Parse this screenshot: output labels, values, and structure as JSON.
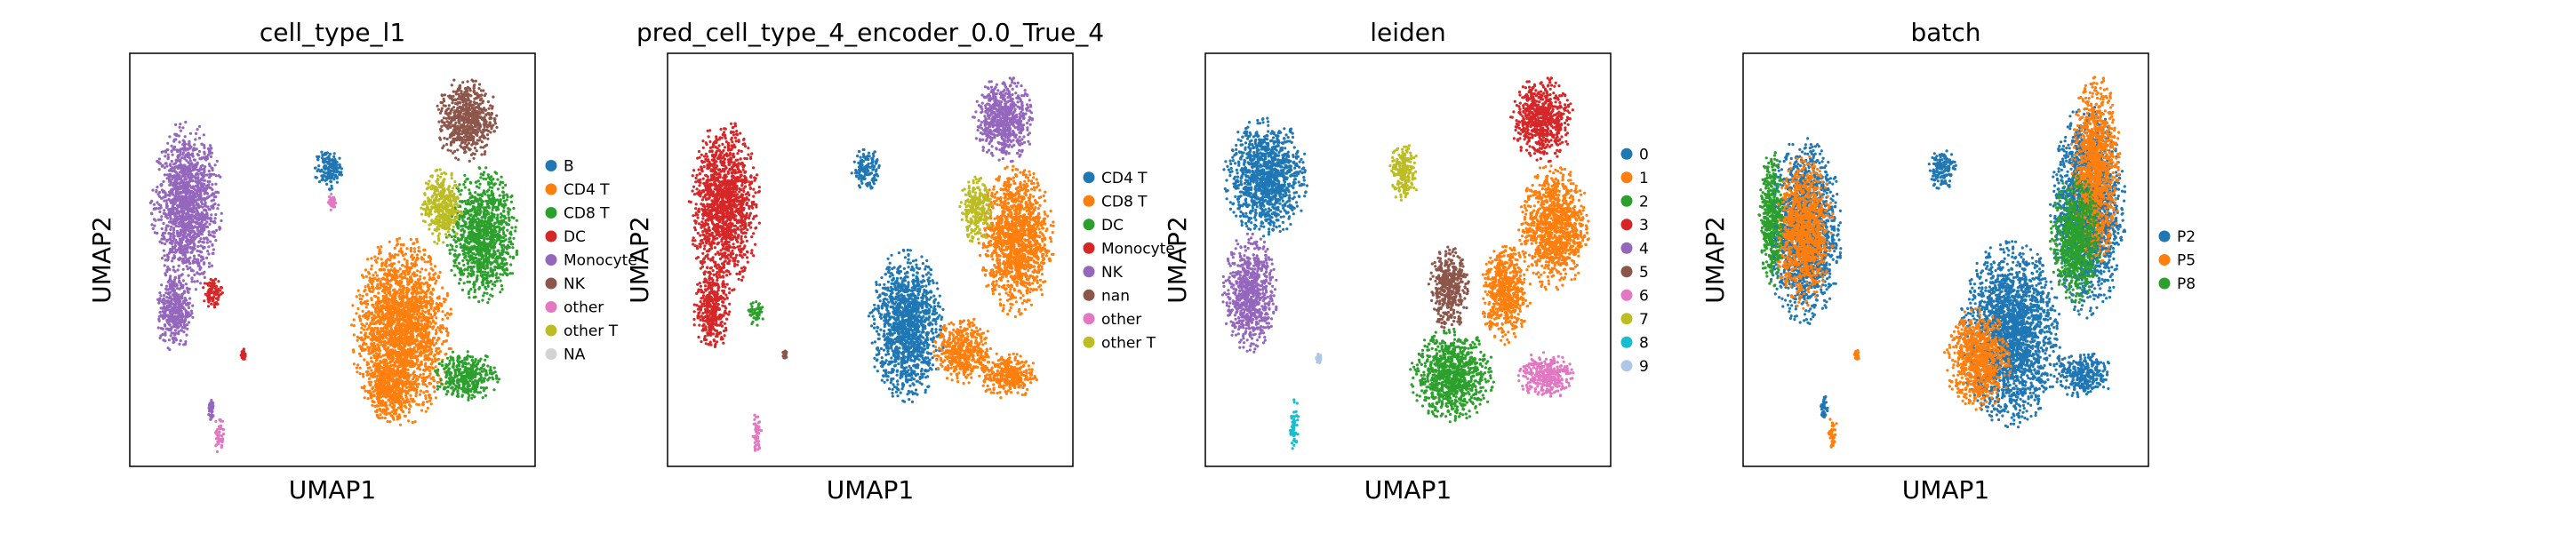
{
  "chart_data": [
    {
      "type": "scatter",
      "title": "cell_type_l1",
      "xlabel": "UMAP1",
      "ylabel": "UMAP2",
      "grid": false,
      "ticks": false,
      "legend_position": "right",
      "legend": [
        {
          "label": "B",
          "color": "#1f77b4"
        },
        {
          "label": "CD4 T",
          "color": "#ff7f0e"
        },
        {
          "label": "CD8 T",
          "color": "#2ca02c"
        },
        {
          "label": "DC",
          "color": "#d62728"
        },
        {
          "label": "Monocyte",
          "color": "#9467bd"
        },
        {
          "label": "NK",
          "color": "#8c564b"
        },
        {
          "label": "other",
          "color": "#e377c2"
        },
        {
          "label": "other T",
          "color": "#bcbd22"
        },
        {
          "label": "NA",
          "color": "#d3d3d3"
        }
      ],
      "clusters": [
        {
          "label": "Monocyte",
          "x": 0.14,
          "y": 0.63,
          "rx": 0.085,
          "ry": 0.2
        },
        {
          "label": "Monocyte",
          "x": 0.11,
          "y": 0.38,
          "rx": 0.045,
          "ry": 0.1
        },
        {
          "label": "DC",
          "x": 0.205,
          "y": 0.42,
          "rx": 0.025,
          "ry": 0.04
        },
        {
          "label": "DC",
          "x": 0.28,
          "y": 0.27,
          "rx": 0.006,
          "ry": 0.015
        },
        {
          "label": "B",
          "x": 0.49,
          "y": 0.72,
          "rx": 0.035,
          "ry": 0.05
        },
        {
          "label": "other",
          "x": 0.5,
          "y": 0.64,
          "rx": 0.01,
          "ry": 0.02
        },
        {
          "label": "CD4 T",
          "x": 0.67,
          "y": 0.33,
          "rx": 0.12,
          "ry": 0.22
        },
        {
          "label": "CD4 T",
          "x": 0.64,
          "y": 0.18,
          "rx": 0.06,
          "ry": 0.07
        },
        {
          "label": "CD8 T",
          "x": 0.83,
          "y": 0.22,
          "rx": 0.08,
          "ry": 0.06
        },
        {
          "label": "CD8 T",
          "x": 0.87,
          "y": 0.56,
          "rx": 0.085,
          "ry": 0.16
        },
        {
          "label": "NK",
          "x": 0.83,
          "y": 0.84,
          "rx": 0.075,
          "ry": 0.1
        },
        {
          "label": "other T",
          "x": 0.77,
          "y": 0.63,
          "rx": 0.05,
          "ry": 0.09
        },
        {
          "label": "other",
          "x": 0.22,
          "y": 0.08,
          "rx": 0.012,
          "ry": 0.05
        },
        {
          "label": "Monocyte",
          "x": 0.2,
          "y": 0.14,
          "rx": 0.008,
          "ry": 0.03
        }
      ]
    },
    {
      "type": "scatter",
      "title": "pred_cell_type_4_encoder_0.0_True_4",
      "xlabel": "UMAP1",
      "ylabel": "UMAP2",
      "grid": false,
      "ticks": false,
      "legend_position": "right",
      "legend": [
        {
          "label": "CD4 T",
          "color": "#1f77b4"
        },
        {
          "label": "CD8 T",
          "color": "#ff7f0e"
        },
        {
          "label": "DC",
          "color": "#2ca02c"
        },
        {
          "label": "Monocyte",
          "color": "#d62728"
        },
        {
          "label": "NK",
          "color": "#9467bd"
        },
        {
          "label": "nan",
          "color": "#8c564b"
        },
        {
          "label": "other",
          "color": "#e377c2"
        },
        {
          "label": "other T",
          "color": "#bcbd22"
        }
      ],
      "clusters": [
        {
          "label": "Monocyte",
          "x": 0.14,
          "y": 0.63,
          "rx": 0.085,
          "ry": 0.2
        },
        {
          "label": "Monocyte",
          "x": 0.11,
          "y": 0.38,
          "rx": 0.045,
          "ry": 0.1
        },
        {
          "label": "DC",
          "x": 0.22,
          "y": 0.37,
          "rx": 0.02,
          "ry": 0.03
        },
        {
          "label": "CD4 T",
          "x": 0.49,
          "y": 0.72,
          "rx": 0.035,
          "ry": 0.05
        },
        {
          "label": "CD4 T",
          "x": 0.59,
          "y": 0.34,
          "rx": 0.09,
          "ry": 0.18
        },
        {
          "label": "CD8 T",
          "x": 0.73,
          "y": 0.28,
          "rx": 0.07,
          "ry": 0.08
        },
        {
          "label": "CD8 T",
          "x": 0.84,
          "y": 0.22,
          "rx": 0.07,
          "ry": 0.055
        },
        {
          "label": "CD8 T",
          "x": 0.86,
          "y": 0.55,
          "rx": 0.09,
          "ry": 0.18
        },
        {
          "label": "NK",
          "x": 0.83,
          "y": 0.84,
          "rx": 0.075,
          "ry": 0.1
        },
        {
          "label": "other T",
          "x": 0.76,
          "y": 0.62,
          "rx": 0.04,
          "ry": 0.08
        },
        {
          "label": "other",
          "x": 0.22,
          "y": 0.08,
          "rx": 0.012,
          "ry": 0.05
        },
        {
          "label": "nan",
          "x": 0.29,
          "y": 0.27,
          "rx": 0.006,
          "ry": 0.015
        }
      ]
    },
    {
      "type": "scatter",
      "title": "leiden",
      "xlabel": "UMAP1",
      "ylabel": "UMAP2",
      "grid": false,
      "ticks": false,
      "legend_position": "right",
      "legend": [
        {
          "label": "0",
          "color": "#1f77b4"
        },
        {
          "label": "1",
          "color": "#ff7f0e"
        },
        {
          "label": "2",
          "color": "#2ca02c"
        },
        {
          "label": "3",
          "color": "#d62728"
        },
        {
          "label": "4",
          "color": "#9467bd"
        },
        {
          "label": "5",
          "color": "#8c564b"
        },
        {
          "label": "6",
          "color": "#e377c2"
        },
        {
          "label": "7",
          "color": "#bcbd22"
        },
        {
          "label": "8",
          "color": "#17becf"
        },
        {
          "label": "9",
          "color": "#aec7e8"
        }
      ],
      "clusters": [
        {
          "label": "0",
          "x": 0.15,
          "y": 0.7,
          "rx": 0.1,
          "ry": 0.14
        },
        {
          "label": "4",
          "x": 0.11,
          "y": 0.42,
          "rx": 0.065,
          "ry": 0.14
        },
        {
          "label": "7",
          "x": 0.49,
          "y": 0.71,
          "rx": 0.035,
          "ry": 0.07
        },
        {
          "label": "1",
          "x": 0.86,
          "y": 0.58,
          "rx": 0.085,
          "ry": 0.15
        },
        {
          "label": "1",
          "x": 0.74,
          "y": 0.42,
          "rx": 0.06,
          "ry": 0.12
        },
        {
          "label": "3",
          "x": 0.83,
          "y": 0.84,
          "rx": 0.075,
          "ry": 0.1
        },
        {
          "label": "5",
          "x": 0.6,
          "y": 0.43,
          "rx": 0.05,
          "ry": 0.1
        },
        {
          "label": "2",
          "x": 0.61,
          "y": 0.22,
          "rx": 0.1,
          "ry": 0.11
        },
        {
          "label": "6",
          "x": 0.84,
          "y": 0.22,
          "rx": 0.07,
          "ry": 0.055
        },
        {
          "label": "8",
          "x": 0.22,
          "y": 0.1,
          "rx": 0.012,
          "ry": 0.06
        },
        {
          "label": "9",
          "x": 0.28,
          "y": 0.26,
          "rx": 0.006,
          "ry": 0.015
        }
      ]
    },
    {
      "type": "scatter",
      "title": "batch",
      "xlabel": "UMAP1",
      "ylabel": "UMAP2",
      "grid": false,
      "ticks": false,
      "legend_position": "right",
      "legend": [
        {
          "label": "P2",
          "color": "#1f77b4"
        },
        {
          "label": "P5",
          "color": "#ff7f0e"
        },
        {
          "label": "P8",
          "color": "#2ca02c"
        }
      ],
      "clusters": [
        {
          "label": "P2",
          "x": 0.15,
          "y": 0.57,
          "rx": 0.09,
          "ry": 0.22
        },
        {
          "label": "P5",
          "x": 0.15,
          "y": 0.57,
          "rx": 0.07,
          "ry": 0.18
        },
        {
          "label": "P8",
          "x": 0.07,
          "y": 0.6,
          "rx": 0.03,
          "ry": 0.16
        },
        {
          "label": "P2",
          "x": 0.49,
          "y": 0.72,
          "rx": 0.035,
          "ry": 0.05
        },
        {
          "label": "P2",
          "x": 0.66,
          "y": 0.32,
          "rx": 0.12,
          "ry": 0.22
        },
        {
          "label": "P2",
          "x": 0.84,
          "y": 0.22,
          "rx": 0.07,
          "ry": 0.055
        },
        {
          "label": "P2",
          "x": 0.85,
          "y": 0.62,
          "rx": 0.09,
          "ry": 0.25
        },
        {
          "label": "P5",
          "x": 0.87,
          "y": 0.72,
          "rx": 0.06,
          "ry": 0.22
        },
        {
          "label": "P5",
          "x": 0.58,
          "y": 0.26,
          "rx": 0.08,
          "ry": 0.12
        },
        {
          "label": "P8",
          "x": 0.82,
          "y": 0.55,
          "rx": 0.06,
          "ry": 0.15
        },
        {
          "label": "P2",
          "x": 0.2,
          "y": 0.14,
          "rx": 0.01,
          "ry": 0.03
        },
        {
          "label": "P5",
          "x": 0.22,
          "y": 0.08,
          "rx": 0.012,
          "ry": 0.04
        },
        {
          "label": "P5",
          "x": 0.28,
          "y": 0.27,
          "rx": 0.006,
          "ry": 0.015
        }
      ]
    }
  ]
}
